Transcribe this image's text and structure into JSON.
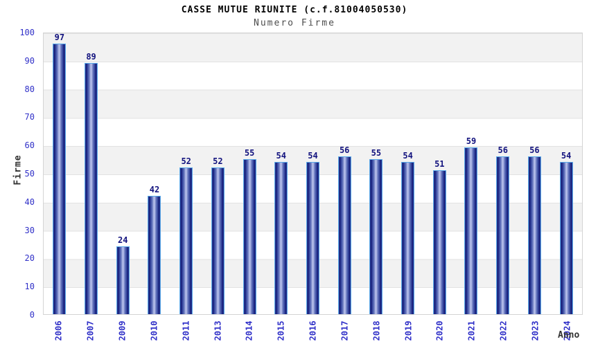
{
  "header": {
    "title": "CASSE MUTUE RIUNITE (c.f.81004050530)",
    "subtitle": "Numero Firme"
  },
  "chart_data": {
    "type": "bar",
    "title": "CASSE MUTUE RIUNITE (c.f.81004050530)",
    "subtitle": "Numero Firme",
    "xlabel": "Anno",
    "ylabel": "Firme",
    "categories": [
      "2006",
      "2007",
      "2009",
      "2010",
      "2011",
      "2013",
      "2014",
      "2015",
      "2016",
      "2017",
      "2018",
      "2019",
      "2020",
      "2021",
      "2022",
      "2023",
      "2024"
    ],
    "values": [
      97,
      89,
      24,
      42,
      52,
      52,
      55,
      54,
      54,
      56,
      55,
      54,
      51,
      59,
      56,
      56,
      54
    ],
    "ylim": [
      0,
      100
    ],
    "ytick_step": 10,
    "grid": "horizontal-gridlines-with-alternating-bands",
    "legend": "none",
    "value_labels": "above-bars",
    "colors": {
      "bar_dark": "#121a74",
      "bar_mid": "#5f6fb9",
      "bar_highlight": "#c2caf0",
      "bar_outline": "#58a8e8",
      "value_label": "#12127e",
      "tick_label": "#3030c8",
      "band_gray": "#f2f2f2",
      "band_white": "#ffffff",
      "gridline": "#e2e2e2",
      "plot_border": "#d4d4d4",
      "title": "#000000",
      "subtitle": "#4d4d4d",
      "axis_title": "#333333"
    }
  }
}
